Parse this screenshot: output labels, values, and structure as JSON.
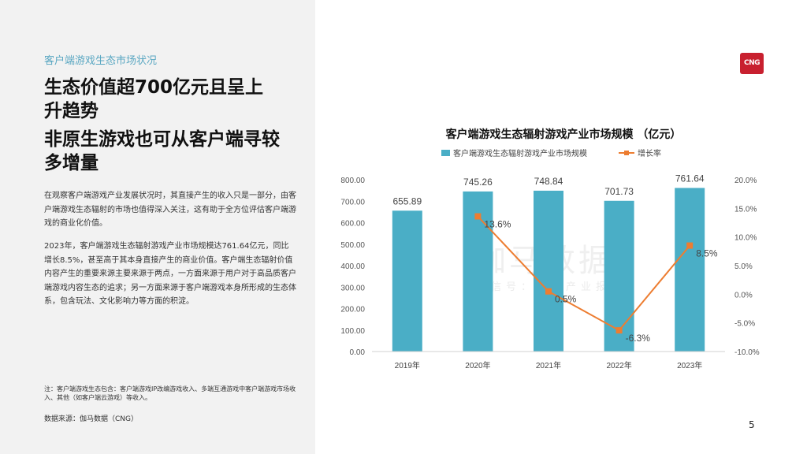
{
  "left": {
    "section_tag": "客户端游戏生态市场状况",
    "headline_1": "生态价值超700亿元且呈上升趋势",
    "headline_2": "非原生游戏也可从客户端寻较多增量",
    "paragraph_1": "在观察客户端游戏产业发展状况时，其直接产生的收入只是一部分，由客户端游戏生态辐射的市场也值得深入关注，这有助于全方位评估客户端游戏的商业化价值。",
    "paragraph_2": "2023年，客户端游戏生态辐射游戏产业市场规模达761.64亿元，同比增长8.5%，甚至高于其本身直接产生的商业价值。客户端生态辐射价值内容产生的重要来源主要来源于两点，一方面来源于用户对于高品质客户端游戏内容生态的追求；另一方面来源于客户端游戏本身所形成的生态体系，包含玩法、文化影响力等方面的积淀。",
    "note": "注：客户端游戏生态包含：客户端游戏IP改编游戏收入、多端互通游戏中客户端游戏市场收入、其他（如客户端云游戏）等收入。",
    "source": "数据来源：伽马数据（CNG）"
  },
  "logo_text": "CNG",
  "page_number": "5",
  "watermark": {
    "main": "伽马数据",
    "sub": "微信号：游戏产业报告"
  },
  "colors": {
    "bar": "#4aaec6",
    "line": "#ed7d31",
    "accent": "#5aa7c2",
    "logo": "#c8202f"
  },
  "chart_data": {
    "type": "bar+line",
    "title": "客户端游戏生态辐射游戏产业市场规模 （亿元）",
    "categories": [
      "2019年",
      "2020年",
      "2021年",
      "2022年",
      "2023年"
    ],
    "series": [
      {
        "name": "客户端游戏生态辐射游戏产业市场规模",
        "type": "bar",
        "axis": "left",
        "values": [
          655.89,
          745.26,
          748.84,
          701.73,
          761.64
        ],
        "labels": [
          "655.89",
          "745.26",
          "748.84",
          "701.73",
          "761.64"
        ]
      },
      {
        "name": "增长率",
        "type": "line",
        "axis": "right",
        "values": [
          null,
          13.6,
          0.5,
          -6.3,
          8.5
        ],
        "labels": [
          "",
          "13.6%",
          "0.5%",
          "-6.3%",
          "8.5%"
        ]
      }
    ],
    "y_left": {
      "range": [
        0,
        800
      ],
      "ticks": [
        "0.00",
        "100.00",
        "200.00",
        "300.00",
        "400.00",
        "500.00",
        "600.00",
        "700.00",
        "800.00"
      ]
    },
    "y_right": {
      "range": [
        -10,
        20
      ],
      "ticks": [
        "-10.0%",
        "-5.0%",
        "0.0%",
        "5.0%",
        "10.0%",
        "15.0%",
        "20.0%"
      ]
    },
    "legend_position": "top",
    "grid": false
  }
}
